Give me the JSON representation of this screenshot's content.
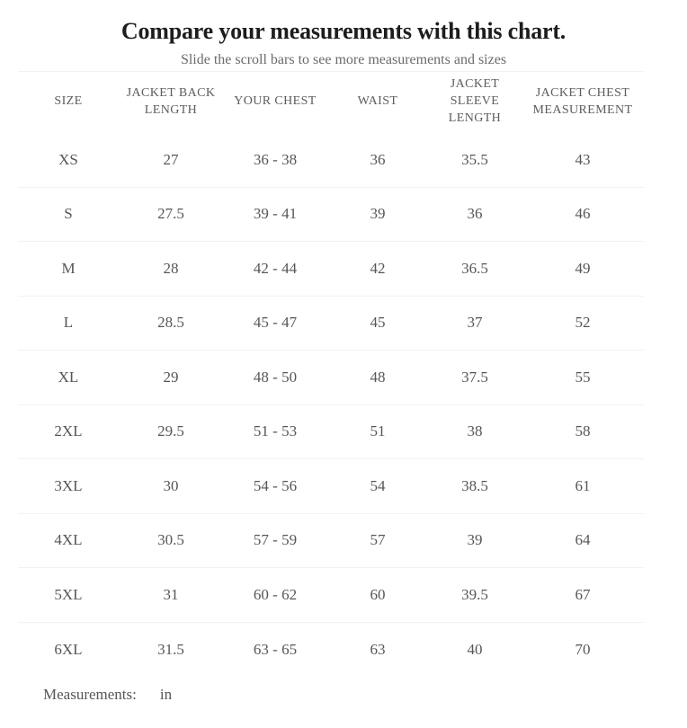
{
  "title": "Compare your measurements with this chart.",
  "subtitle": "Slide the scroll bars to see more measurements and sizes",
  "table": {
    "columns": [
      "SIZE",
      "JACKET BACK LENGTH",
      "YOUR CHEST",
      "WAIST",
      "JACKET SLEEVE LENGTH",
      "JACKET CHEST MEASUREMENT"
    ],
    "rows": [
      {
        "cells": [
          "XS",
          "27",
          "36 - 38",
          "36",
          "35.5",
          "43"
        ]
      },
      {
        "cells": [
          "S",
          "27.5",
          "39 - 41",
          "39",
          "36",
          "46"
        ]
      },
      {
        "cells": [
          "M",
          "28",
          "42 - 44",
          "42",
          "36.5",
          "49"
        ]
      },
      {
        "cells": [
          "L",
          "28.5",
          "45 - 47",
          "45",
          "37",
          "52"
        ]
      },
      {
        "cells": [
          "XL",
          "29",
          "48 - 50",
          "48",
          "37.5",
          "55"
        ]
      },
      {
        "cells": [
          "2XL",
          "29.5",
          "51 - 53",
          "51",
          "38",
          "58"
        ]
      },
      {
        "cells": [
          "3XL",
          "30",
          "54 - 56",
          "54",
          "38.5",
          "61"
        ]
      },
      {
        "cells": [
          "4XL",
          "30.5",
          "57 - 59",
          "57",
          "39",
          "64"
        ]
      },
      {
        "cells": [
          "5XL",
          "31",
          "60 - 62",
          "60",
          "39.5",
          "67"
        ]
      },
      {
        "cells": [
          "6XL",
          "31.5",
          "63 - 65",
          "63",
          "40",
          "70"
        ]
      }
    ]
  },
  "footer": {
    "label": "Measurements:",
    "unit": "in"
  },
  "colors": {
    "background": "#ffffff",
    "title": "#1d1d1d",
    "subtitle": "#6b6b6b",
    "header_text": "#5c5c5c",
    "cell_text": "#565656",
    "divider": "#f2f2f2"
  }
}
